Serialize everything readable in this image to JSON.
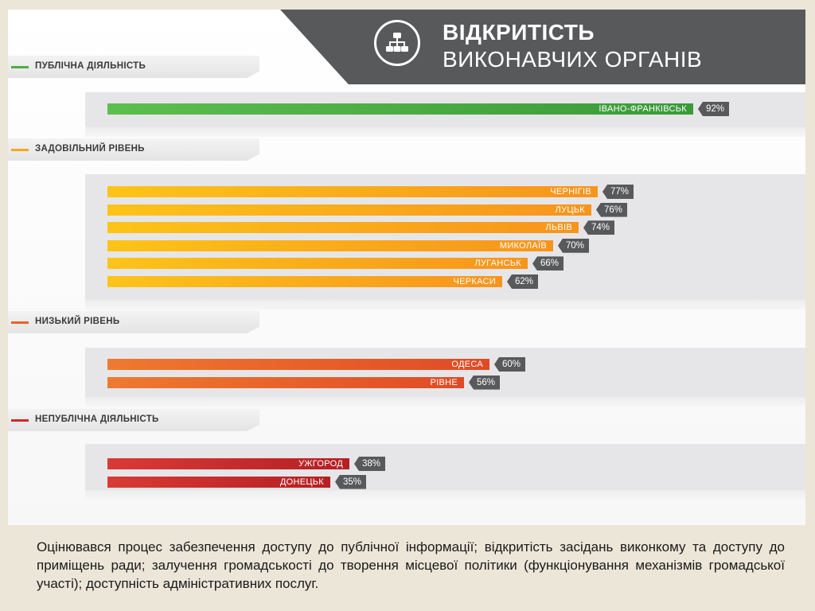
{
  "header": {
    "line1": "ВІДКРИТІСТЬ",
    "line2": "ВИКОНАВЧИХ ОРГАНІВ",
    "icon": "org-structure-icon"
  },
  "colors": {
    "green": "#4caf45",
    "orange": "#f7a81b",
    "dark_orange": "#e8632a",
    "red": "#cc2a2c",
    "tag": "#58595b"
  },
  "chart_data": {
    "type": "bar",
    "orientation": "horizontal",
    "unit": "%",
    "groups": [
      {
        "label": "ПУБЛІЧНА ДІЯЛЬНІСТЬ",
        "color": "#4caf45",
        "items": [
          {
            "city": "ІВАНО-ФРАНКІВСЬК",
            "value": 92
          }
        ]
      },
      {
        "label": "ЗАДОВІЛЬНИЙ РІВЕНЬ",
        "color": "#f7a81b",
        "items": [
          {
            "city": "ЧЕРНІГІВ",
            "value": 77
          },
          {
            "city": "ЛУЦЬК",
            "value": 76
          },
          {
            "city": "ЛЬВІВ",
            "value": 74
          },
          {
            "city": "МИКОЛАЇВ",
            "value": 70
          },
          {
            "city": "ЛУГАНСЬК",
            "value": 66
          },
          {
            "city": "ЧЕРКАСИ",
            "value": 62
          }
        ]
      },
      {
        "label": "НИЗЬКИЙ РІВЕНЬ",
        "color": "#e8632a",
        "items": [
          {
            "city": "ОДЕСА",
            "value": 60
          },
          {
            "city": "РІВНЕ",
            "value": 56
          }
        ]
      },
      {
        "label": "НЕПУБЛІЧНА ДІЯЛЬНІСТЬ",
        "color": "#cc2a2c",
        "items": [
          {
            "city": "УЖГОРОД",
            "value": 38
          },
          {
            "city": "ДОНЕЦЬК",
            "value": 35
          }
        ]
      }
    ]
  },
  "caption": "Оцінювався процес забезпечення доступу до публічної інформації; відкритість засідань виконкому та доступу до приміщень ради; залучення громадськості до творення місцевої політики (функціонування механізмів громадської участі); доступність адміністративних послуг."
}
